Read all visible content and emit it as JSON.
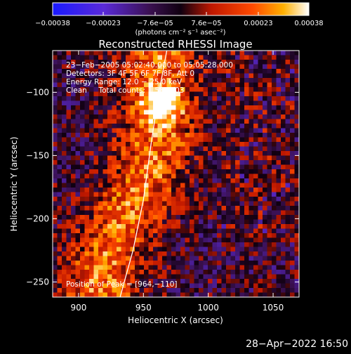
{
  "chart_data": {
    "type": "heatmap",
    "title": "Reconstructed RHESSI Image",
    "xlabel": "Heliocentric X (arcsec)",
    "ylabel": "Heliocentric Y (arcsec)",
    "xlim": [
      880,
      1070
    ],
    "ylim": [
      -262,
      -67
    ],
    "x_ticks": [
      900,
      950,
      1000,
      1050
    ],
    "x_tick_labels": [
      "900",
      "950",
      "1000",
      "1050"
    ],
    "y_ticks": [
      -100,
      -150,
      -200,
      -250
    ],
    "y_tick_labels": [
      "−100",
      "−150",
      "−200",
      "−250"
    ],
    "colorbar": {
      "range": [
        -0.00038,
        0.00038
      ],
      "ticks": [
        -0.00038,
        -0.00023,
        -7.6e-05,
        7.6e-05,
        0.00023,
        0.00038
      ],
      "tick_labels": [
        "−0.00038",
        "−0.00023",
        "−7.6e−05",
        "7.6e−05",
        "0.00023",
        "0.00038"
      ],
      "units": "(photons cm⁻² s⁻¹ asec⁻²)"
    },
    "annotations": [
      "23−Feb−2005 05:02:40.000 to 05:05:28.000",
      "Detectors: 3F 4F 5F 6F 7F 8F, Att 0",
      "Energy Range: 12.0 − 25.0 keV",
      "Clean     Total counts: 1.58E+03"
    ],
    "peak_label": "Position of Peak = [964,−110]",
    "peak_position": [
      964,
      -110
    ],
    "footer_date": "28−Apr−2022 16:50",
    "grid": false,
    "limb_curve": [
      [
        932,
        -262
      ],
      [
        942,
        -225
      ],
      [
        950,
        -185
      ],
      [
        956,
        -140
      ],
      [
        962,
        -100
      ],
      [
        968,
        -67
      ]
    ]
  }
}
